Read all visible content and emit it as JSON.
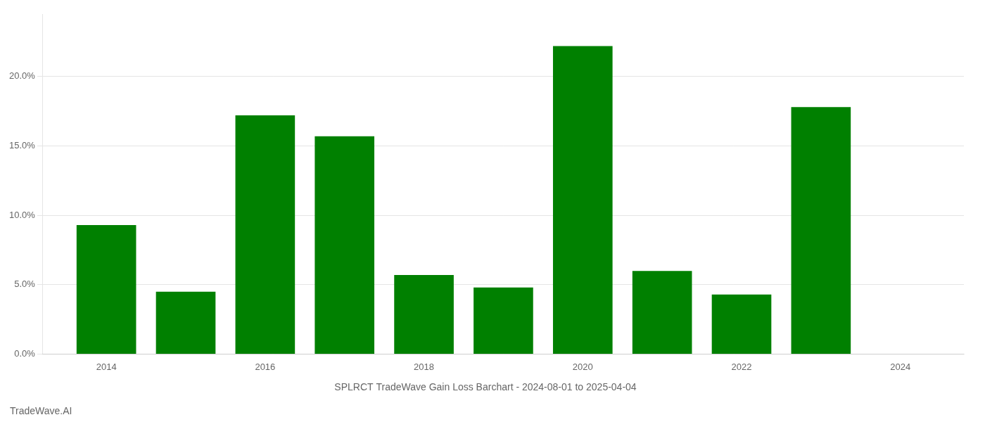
{
  "chart_data": {
    "type": "bar",
    "title": "SPLRCT TradeWave Gain Loss Barchart - 2024-08-01 to 2025-04-04",
    "annotations": [
      "TradeWave.AI"
    ],
    "x": [
      2014,
      2015,
      2016,
      2017,
      2018,
      2019,
      2020,
      2021,
      2022,
      2023
    ],
    "values": [
      9.3,
      4.5,
      17.2,
      15.7,
      5.7,
      4.8,
      22.2,
      6.0,
      4.3,
      17.8
    ],
    "color": "#008000",
    "xlim": [
      2013.2,
      2024.8
    ],
    "xticks": [
      2014,
      2016,
      2018,
      2020,
      2022,
      2024
    ],
    "ylim": [
      0,
      24.5
    ],
    "yticks": [
      {
        "value": 0,
        "label": "0.0%"
      },
      {
        "value": 5,
        "label": "5.0%"
      },
      {
        "value": 10,
        "label": "10.0%"
      },
      {
        "value": 15,
        "label": "15.0%"
      },
      {
        "value": 20,
        "label": "20.0%"
      }
    ],
    "grid": "y"
  }
}
